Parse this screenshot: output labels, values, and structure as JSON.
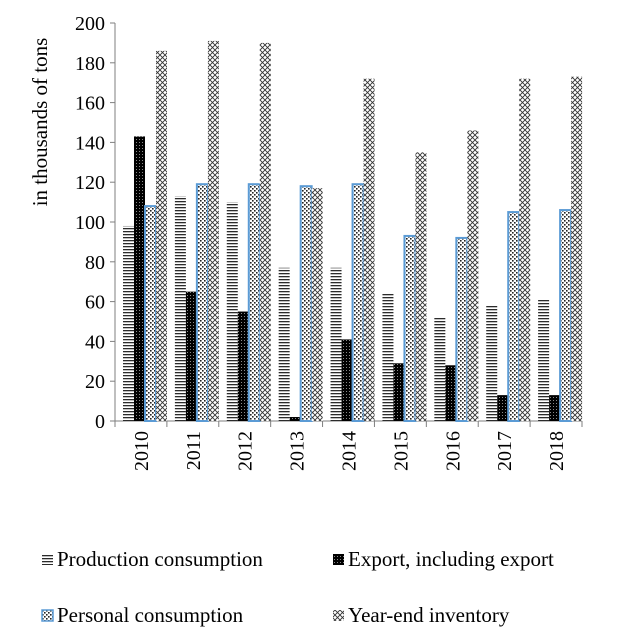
{
  "chart_data": {
    "type": "bar",
    "title": "",
    "xlabel": "",
    "ylabel": "in thousands of tons",
    "ylim": [
      0,
      200
    ],
    "yticks": [
      0,
      20,
      40,
      60,
      80,
      100,
      120,
      140,
      160,
      180,
      200
    ],
    "categories": [
      "2010",
      "2011",
      "2012",
      "2013",
      "2014",
      "2015",
      "2016",
      "2017",
      "2018"
    ],
    "series": [
      {
        "name": "Production consumption",
        "values": [
          98,
          113,
          110,
          77,
          77,
          64,
          52,
          58,
          61
        ]
      },
      {
        "name": "Export, including export",
        "values": [
          143,
          65,
          55,
          2,
          41,
          29,
          28,
          13,
          13
        ]
      },
      {
        "name": "Personal consumption",
        "values": [
          108,
          119,
          119,
          118,
          119,
          93,
          92,
          105,
          106
        ]
      },
      {
        "name": "Year-end inventory",
        "values": [
          186,
          191,
          190,
          117,
          172,
          135,
          146,
          172,
          173
        ]
      }
    ],
    "legend_position": "bottom",
    "grid": false
  }
}
